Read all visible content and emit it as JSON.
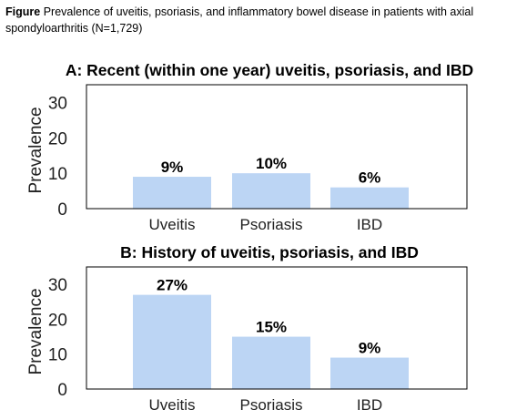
{
  "caption": {
    "lead": "Figure",
    "text": "Prevalence of uveitis, psoriasis, and inflammatory bowel disease in patients with axial spondyloarthritis (N=1,729)"
  },
  "colors": {
    "bar": "#bcd5f4",
    "frame": "#000000"
  },
  "chart_data": [
    {
      "type": "bar",
      "title": "A: Recent (within one year) uveitis, psoriasis, and IBD",
      "ylabel": "Prevalence",
      "ylim": [
        0,
        35
      ],
      "yticks": [
        0,
        10,
        20,
        30
      ],
      "categories": [
        "Uveitis",
        "Psoriasis",
        "IBD"
      ],
      "values": [
        9,
        10,
        6
      ],
      "data_labels": [
        "9%",
        "10%",
        "6%"
      ],
      "grid": false,
      "legend": "none"
    },
    {
      "type": "bar",
      "title": "B: History of uveitis, psoriasis, and IBD",
      "ylabel": "Prevalence",
      "ylim": [
        0,
        35
      ],
      "yticks": [
        0,
        10,
        20,
        30
      ],
      "categories": [
        "Uveitis",
        "Psoriasis",
        "IBD"
      ],
      "values": [
        27,
        15,
        9
      ],
      "data_labels": [
        "27%",
        "15%",
        "9%"
      ],
      "grid": false,
      "legend": "none"
    }
  ]
}
